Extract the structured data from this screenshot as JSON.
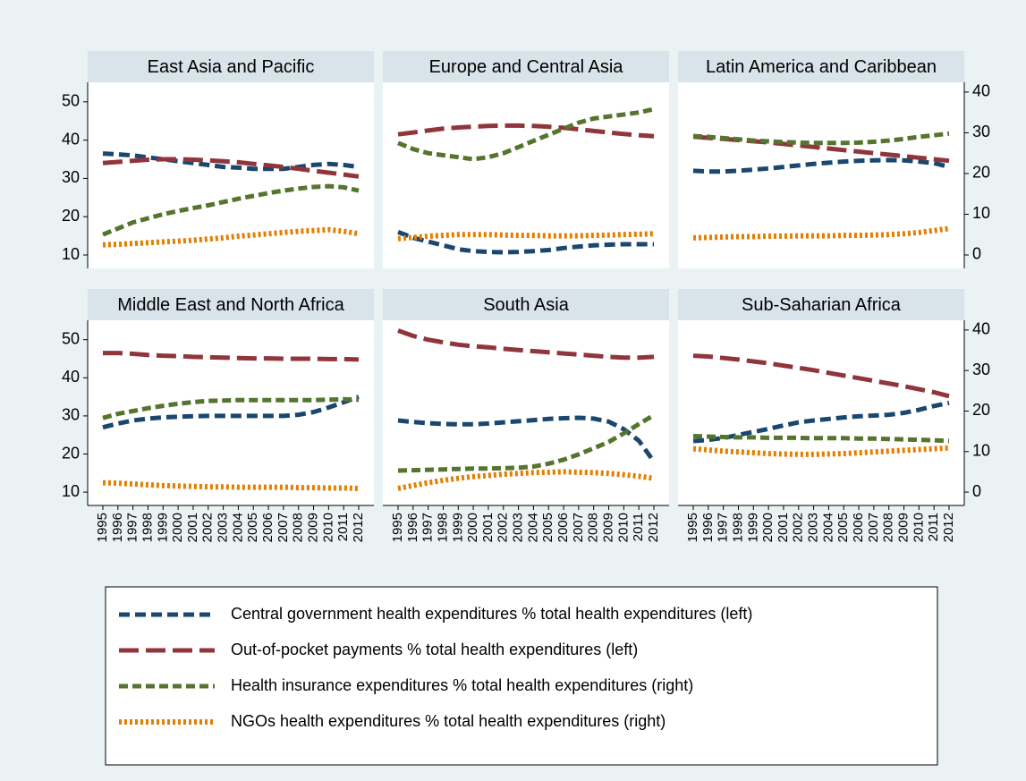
{
  "chart_data": {
    "type": "line",
    "categories": [
      "1995",
      "1996",
      "1997",
      "1998",
      "1999",
      "2000",
      "2001",
      "2002",
      "2003",
      "2004",
      "2005",
      "2006",
      "2007",
      "2008",
      "2009",
      "2010",
      "2011",
      "2012"
    ],
    "ylim": [
      6.5,
      55.1
    ],
    "yticks": [
      10,
      20,
      30,
      40,
      50
    ],
    "y2lim": [
      -3.3,
      42.4
    ],
    "y2ticks": [
      0,
      10,
      20,
      30,
      40
    ],
    "series": [
      {
        "name": "Central government health expenditures % total health expenditures (left)",
        "color": "#1a476f",
        "axis": "y"
      },
      {
        "name": "Out-of-pocket payments % total health expenditures (left)",
        "color": "#90353b",
        "axis": "y"
      },
      {
        "name": "Health insurance expenditures % total health expenditures (right)",
        "color": "#55752f",
        "axis": "y2"
      },
      {
        "name": "NGOs health expenditures % total health expenditures (right)",
        "color": "#e37e00",
        "axis": "y2"
      }
    ],
    "panels": [
      {
        "title": "East Asia and Pacific",
        "values": [
          [
            36.5,
            36.3,
            36,
            35.5,
            35,
            34.5,
            34,
            33.5,
            33,
            32.8,
            32.5,
            32.5,
            32.5,
            33,
            33.5,
            33.8,
            33.5,
            33
          ],
          [
            34,
            34.3,
            34.6,
            34.9,
            35,
            35,
            34.9,
            34.7,
            34.5,
            34.2,
            33.8,
            33.4,
            33,
            32.5,
            32,
            31.5,
            31,
            30.5
          ],
          [
            5,
            6.5,
            8,
            9,
            10,
            10.8,
            11.5,
            12.2,
            13,
            13.8,
            14.5,
            15.2,
            15.8,
            16.3,
            16.7,
            16.9,
            16.6,
            15.8
          ],
          [
            2.5,
            2.6,
            2.8,
            3,
            3.2,
            3.4,
            3.6,
            3.9,
            4.2,
            4.6,
            4.9,
            5.2,
            5.5,
            5.8,
            6,
            6.2,
            5.8,
            5.2
          ]
        ]
      },
      {
        "title": "Europe and Central Asia",
        "values": [
          [
            16,
            14.5,
            13.5,
            12.5,
            11.5,
            11,
            10.8,
            10.7,
            10.8,
            11,
            11.3,
            11.8,
            12.2,
            12.5,
            12.7,
            12.8,
            12.8,
            12.8
          ],
          [
            41.5,
            42,
            42.5,
            43,
            43.3,
            43.5,
            43.7,
            43.8,
            43.8,
            43.7,
            43.5,
            43.2,
            42.8,
            42.4,
            42,
            41.6,
            41.3,
            41
          ],
          [
            27.5,
            26,
            25,
            24.5,
            24,
            23.5,
            24,
            25,
            26.5,
            28,
            29.5,
            31,
            32.5,
            33.5,
            34,
            34.5,
            35,
            35.8
          ],
          [
            4,
            4.3,
            4.6,
            4.8,
            5,
            5,
            5,
            4.9,
            4.8,
            4.8,
            4.7,
            4.7,
            4.7,
            4.8,
            4.9,
            5,
            5.1,
            5.2
          ]
        ]
      },
      {
        "title": "Latin America and Caribbean",
        "values": [
          [
            32,
            31.8,
            31.8,
            32,
            32.3,
            32.6,
            33,
            33.4,
            33.8,
            34.1,
            34.4,
            34.6,
            34.7,
            34.8,
            34.7,
            34.4,
            34,
            33
          ],
          [
            40.9,
            40.6,
            40.3,
            40,
            39.7,
            39.4,
            39,
            38.6,
            38.2,
            37.8,
            37.4,
            37,
            36.6,
            36.2,
            35.8,
            35.4,
            35,
            34.6
          ],
          [
            29.2,
            29,
            28.7,
            28.4,
            28.1,
            27.9,
            27.7,
            27.6,
            27.5,
            27.5,
            27.5,
            27.6,
            27.8,
            28.1,
            28.5,
            29,
            29.4,
            29.8
          ],
          [
            4.2,
            4.3,
            4.4,
            4.5,
            4.5,
            4.6,
            4.6,
            4.7,
            4.7,
            4.7,
            4.8,
            4.8,
            4.9,
            5,
            5.2,
            5.5,
            6,
            6.5
          ]
        ]
      },
      {
        "title": "Middle East and North Africa",
        "values": [
          [
            27,
            28,
            28.8,
            29.3,
            29.6,
            29.8,
            29.9,
            30,
            30,
            30,
            30,
            30,
            30,
            30.3,
            31,
            32.2,
            33.6,
            35
          ],
          [
            46.5,
            46.5,
            46.3,
            46,
            45.8,
            45.7,
            45.5,
            45.4,
            45.3,
            45.2,
            45.1,
            45.1,
            45,
            45,
            45,
            44.9,
            44.9,
            44.8
          ],
          [
            18.3,
            19.3,
            20,
            20.7,
            21.3,
            21.8,
            22.2,
            22.5,
            22.6,
            22.7,
            22.7,
            22.7,
            22.7,
            22.7,
            22.7,
            22.8,
            22.9,
            22.8
          ],
          [
            2.3,
            2.2,
            2,
            1.8,
            1.6,
            1.5,
            1.4,
            1.3,
            1.3,
            1.2,
            1.2,
            1.2,
            1.2,
            1.1,
            1.1,
            1,
            1,
            0.9
          ]
        ]
      },
      {
        "title": "South Asia",
        "values": [
          [
            28.8,
            28.4,
            28.1,
            27.9,
            27.8,
            27.8,
            28,
            28.3,
            28.6,
            28.9,
            29.2,
            29.4,
            29.5,
            29.3,
            28.5,
            26.5,
            23.5,
            18
          ],
          [
            52.4,
            51,
            50,
            49.3,
            48.7,
            48.3,
            48,
            47.6,
            47.3,
            47,
            46.7,
            46.4,
            46.1,
            45.8,
            45.5,
            45.3,
            45.3,
            45.5
          ],
          [
            5.3,
            5.4,
            5.5,
            5.6,
            5.7,
            5.8,
            5.8,
            5.9,
            6,
            6.3,
            7,
            8,
            9.3,
            10.8,
            12.4,
            14.5,
            16.8,
            19
          ],
          [
            0.9,
            1.6,
            2.3,
            2.9,
            3.4,
            3.8,
            4.1,
            4.4,
            4.6,
            4.8,
            4.9,
            5,
            4.9,
            4.8,
            4.6,
            4.3,
            3.9,
            3.4
          ]
        ]
      },
      {
        "title": "Sub-Saharian Africa",
        "values": [
          [
            23.4,
            23.7,
            24.2,
            25,
            25.8,
            26.6,
            27.5,
            28.3,
            28.8,
            29.2,
            29.6,
            29.9,
            30.1,
            30.3,
            30.8,
            31.6,
            32.6,
            33.4
          ],
          [
            45.8,
            45.6,
            45.2,
            44.8,
            44.3,
            43.8,
            43.2,
            42.6,
            42,
            41.3,
            40.6,
            39.9,
            39.2,
            38.5,
            37.8,
            37,
            36.2,
            35.2
          ],
          [
            13.8,
            13.7,
            13.6,
            13.5,
            13.5,
            13.4,
            13.4,
            13.4,
            13.3,
            13.3,
            13.3,
            13.2,
            13.2,
            13.1,
            13,
            12.9,
            12.8,
            12.6
          ],
          [
            10.7,
            10.4,
            10.1,
            9.9,
            9.7,
            9.5,
            9.4,
            9.3,
            9.3,
            9.4,
            9.5,
            9.7,
            9.9,
            10.1,
            10.3,
            10.5,
            10.7,
            10.9
          ]
        ]
      }
    ]
  }
}
